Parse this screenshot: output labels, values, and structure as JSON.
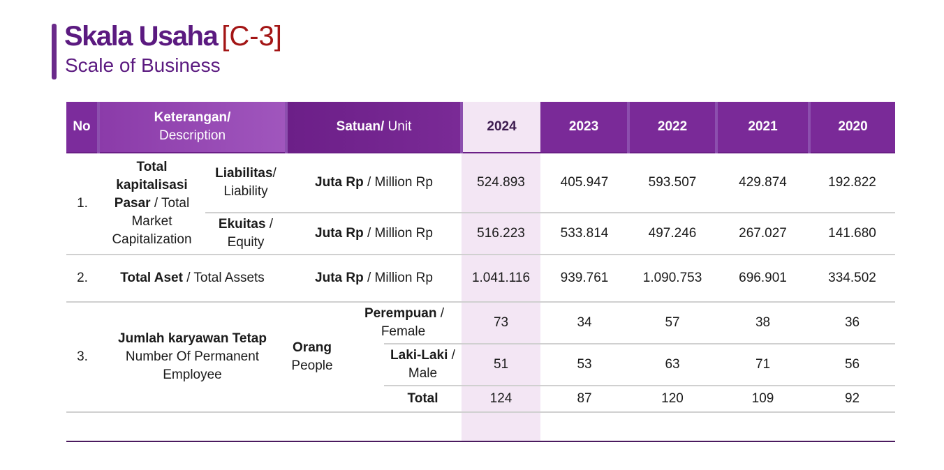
{
  "header": {
    "title": "Skala Usaha",
    "code": "[C-3]",
    "subtitle": "Scale of Business"
  },
  "table": {
    "head": {
      "no": "No",
      "desc_bold": "Keterangan/",
      "desc_reg": "Description",
      "unit_bold": "Satuan/",
      "unit_reg": " Unit",
      "years": [
        "2024",
        "2023",
        "2022",
        "2021",
        "2020"
      ]
    },
    "rows": {
      "r1": {
        "no": "1.",
        "label_bold_1": "Total",
        "label_bold_2": "kapitalisasi",
        "label_bold_3": "Pasar",
        "label_reg_1": " / Total",
        "label_reg_2": "Market",
        "label_reg_3": "Capitalization",
        "sub1_bold": "Liabilitas",
        "sub1_reg_1": "/",
        "sub1_reg_2": "Liability",
        "sub2_bold": "Ekuitas",
        "sub2_reg_1": " /",
        "sub2_reg_2": "Equity",
        "unit_bold": "Juta Rp",
        "unit_reg": " / Million Rp",
        "liability": [
          "524.893",
          "405.947",
          "593.507",
          "429.874",
          "192.822"
        ],
        "equity": [
          "516.223",
          "533.814",
          "497.246",
          "267.027",
          "141.680"
        ]
      },
      "r2": {
        "no": "2.",
        "label_bold": "Total Aset",
        "label_reg": " / Total Assets",
        "unit_bold": "Juta Rp",
        "unit_reg": " / Million Rp",
        "values": [
          "1.041.116",
          "939.761",
          "1.090.753",
          "696.901",
          "334.502"
        ]
      },
      "r3": {
        "no": "3.",
        "label_bold": "Jumlah karyawan Tetap",
        "label_reg_1": "Number Of Permanent",
        "label_reg_2": "Employee",
        "unit_bold": "Orang",
        "unit_reg": "People",
        "female_bold": "Perempuan",
        "female_reg_1": " /",
        "female_reg_2": "Female",
        "male_bold": "Laki-Laki",
        "male_reg_1": " /",
        "male_reg_2": "Male",
        "total_label": "Total",
        "female": [
          "73",
          "34",
          "57",
          "38",
          "36"
        ],
        "male": [
          "51",
          "53",
          "63",
          "71",
          "56"
        ],
        "total": [
          "124",
          "87",
          "120",
          "109",
          "92"
        ]
      }
    }
  },
  "colors": {
    "brand_purple": "#5b1a80",
    "code_red": "#a31515",
    "highlight": "#f3e6f4"
  }
}
